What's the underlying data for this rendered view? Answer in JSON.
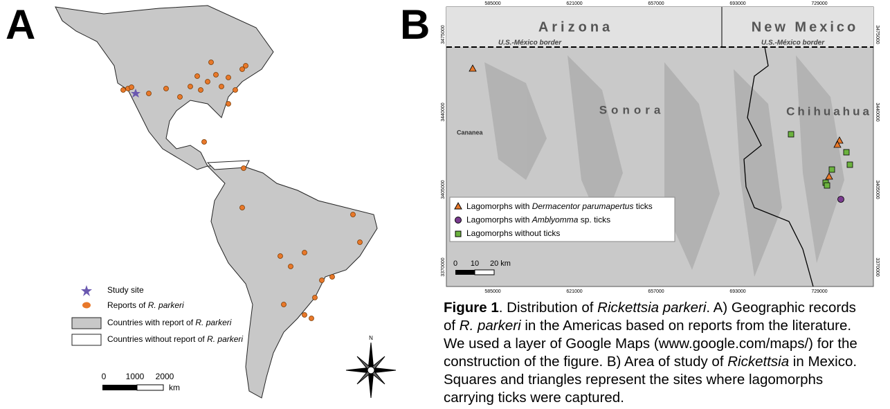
{
  "panel_a": {
    "label": "A",
    "legend": [
      [
        {
          "text": "Study site",
          "style": "n"
        }
      ],
      [
        {
          "text": "Reports of ",
          "style": "n"
        },
        {
          "text": "R. parkeri",
          "style": "i"
        }
      ],
      [
        {
          "text": "Countries with report of ",
          "style": "n"
        },
        {
          "text": "R. parkeri",
          "style": "i"
        }
      ],
      [
        {
          "text": "Countries without report of ",
          "style": "n"
        },
        {
          "text": "R. parkeri",
          "style": "i"
        }
      ]
    ],
    "scale": [
      "0",
      "1000",
      "2000",
      "km"
    ],
    "north": "N"
  },
  "panel_b": {
    "label": "B",
    "regions": [
      "Arizona",
      "New Mexico",
      "Sonora",
      "Chihuahua"
    ],
    "border_labels": [
      "U.S.-México border",
      "U.S.-México border"
    ],
    "town": "Cananea",
    "x_ticks": [
      "585000",
      "621000",
      "657000",
      "693000",
      "729000"
    ],
    "y_ticks": [
      "3475000",
      "3440000",
      "3405000",
      "3370000"
    ],
    "legend": [
      [
        {
          "text": "Lagomorphs with ",
          "style": "n"
        },
        {
          "text": "Dermacentor parumapertus",
          "style": "i"
        },
        {
          "text": " ticks",
          "style": "n"
        }
      ],
      [
        {
          "text": "Lagomorphs with ",
          "style": "n"
        },
        {
          "text": "Amblyomma",
          "style": "i"
        },
        {
          "text": " sp. ticks",
          "style": "n"
        }
      ],
      [
        {
          "text": "Lagomorphs without ticks",
          "style": "n"
        }
      ]
    ],
    "scale": [
      "0",
      "10",
      "20 km"
    ]
  },
  "caption": [
    [
      {
        "text": "Figure 1",
        "style": "b"
      },
      {
        "text": ". Distribution of ",
        "style": "n"
      },
      {
        "text": "Rickettsia parkeri",
        "style": "i"
      },
      {
        "text": ". A) Geographic records",
        "style": "n"
      }
    ],
    [
      {
        "text": "of ",
        "style": "n"
      },
      {
        "text": "R. parkeri",
        "style": "i"
      },
      {
        "text": " in the Americas based on reports from the literature.",
        "style": "n"
      }
    ],
    [
      {
        "text": "We used a layer of Google Maps (www.google.com/maps/) for the",
        "style": "n"
      }
    ],
    [
      {
        "text": "construction of the figure. B) Area of study of ",
        "style": "n"
      },
      {
        "text": "Rickettsia",
        "style": "i"
      },
      {
        "text": " in Mexico.",
        "style": "n"
      }
    ],
    [
      {
        "text": "Squares and triangles represent the sites where lagomorphs",
        "style": "n"
      }
    ],
    [
      {
        "text": "carrying ticks were captured.",
        "style": "n"
      }
    ]
  ]
}
